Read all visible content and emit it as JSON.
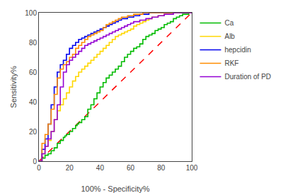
{
  "chart_data": {
    "type": "line",
    "xlabel": "100% - Specificity%",
    "ylabel": "Sensitivity%",
    "xlim": [
      0,
      100
    ],
    "ylim": [
      0,
      100
    ],
    "xticks": [
      0,
      20,
      40,
      60,
      80,
      100
    ],
    "yticks": [
      0,
      20,
      40,
      60,
      80,
      100
    ],
    "grid": false,
    "legend": "right",
    "series": [
      {
        "color": "#FF0000",
        "line_style": "dashed",
        "x": [
          0,
          100
        ],
        "values": [
          0,
          100
        ]
      },
      {
        "name": "Ca",
        "color": "#00BB00",
        "line_style": "steps",
        "x": [
          0,
          2,
          4,
          6,
          8,
          10,
          12,
          14,
          16,
          17,
          18,
          20,
          22,
          24,
          25,
          26,
          28,
          30,
          32,
          34,
          36,
          38,
          40,
          42,
          44,
          46,
          48,
          50,
          52,
          54,
          56,
          58,
          60,
          62,
          64,
          66,
          68,
          70,
          72,
          74,
          76,
          78,
          80,
          82,
          84,
          86,
          88,
          90,
          92,
          94,
          96,
          98,
          100
        ],
        "values": [
          0,
          2,
          4,
          5,
          7,
          9,
          12,
          14,
          16,
          17,
          18,
          20,
          22,
          24,
          25,
          26,
          28,
          30,
          35,
          38,
          42,
          46,
          50,
          53,
          56,
          58,
          60,
          62,
          64,
          67,
          70,
          72,
          74,
          76,
          77,
          79,
          82,
          84,
          85,
          86,
          88,
          89,
          90,
          92,
          93,
          94,
          96,
          97,
          98,
          99,
          99,
          100,
          100
        ]
      },
      {
        "name": "Alb",
        "color": "#FFD700",
        "line_style": "steps",
        "x": [
          0,
          2,
          4,
          6,
          8,
          10,
          12,
          14,
          16,
          18,
          20,
          22,
          24,
          26,
          28,
          30,
          32,
          34,
          36,
          38,
          40,
          42,
          44,
          46,
          48,
          50,
          52,
          54,
          56,
          58,
          60,
          62,
          64,
          66,
          68,
          70,
          72,
          74,
          76,
          78,
          80,
          82,
          84,
          86,
          88,
          90,
          92,
          94,
          96,
          98,
          100
        ],
        "values": [
          0,
          5,
          10,
          14,
          20,
          28,
          34,
          38,
          42,
          46,
          50,
          54,
          57,
          60,
          62,
          64,
          66,
          68,
          70,
          72,
          74,
          76,
          78,
          80,
          82,
          84,
          85,
          86,
          87,
          88,
          89,
          91,
          92,
          93,
          94,
          95,
          96,
          97,
          97,
          98,
          98,
          99,
          99,
          99,
          100,
          100,
          100,
          100,
          100,
          100,
          100
        ]
      },
      {
        "name": "hepcidin",
        "color": "#0000EE",
        "line_style": "steps",
        "x": [
          0,
          2,
          4,
          6,
          8,
          10,
          12,
          14,
          16,
          18,
          20,
          22,
          24,
          26,
          28,
          30,
          32,
          34,
          36,
          38,
          40,
          42,
          44,
          46,
          48,
          50,
          52,
          54,
          56,
          58,
          60,
          62,
          64,
          66,
          68,
          70,
          72,
          74,
          76,
          78,
          80,
          82,
          84,
          86,
          88,
          90,
          92,
          94,
          96,
          98,
          100
        ],
        "values": [
          0,
          8,
          15,
          25,
          38,
          50,
          60,
          65,
          68,
          72,
          76,
          78,
          80,
          82,
          83,
          84,
          85,
          86,
          87,
          88,
          89,
          90,
          91,
          92,
          93,
          94,
          95,
          96,
          96,
          97,
          97,
          98,
          98,
          99,
          99,
          99,
          100,
          100,
          100,
          100,
          100,
          100,
          100,
          100,
          100,
          100,
          100,
          100,
          100,
          100,
          100
        ]
      },
      {
        "name": "RKF",
        "color": "#FF8C00",
        "line_style": "steps",
        "x": [
          0,
          2,
          4,
          6,
          8,
          10,
          12,
          14,
          16,
          18,
          20,
          22,
          24,
          26,
          28,
          30,
          32,
          34,
          36,
          38,
          40,
          42,
          44,
          46,
          48,
          50,
          52,
          54,
          56,
          58,
          60,
          62,
          64,
          66,
          68,
          70,
          72,
          74,
          76,
          78,
          80,
          82,
          84,
          86,
          88,
          90,
          92,
          94,
          96,
          98,
          100
        ],
        "values": [
          0,
          12,
          18,
          25,
          35,
          45,
          56,
          62,
          65,
          67,
          70,
          72,
          76,
          78,
          80,
          82,
          84,
          85,
          86,
          87,
          88,
          90,
          92,
          93,
          94,
          95,
          96,
          97,
          97,
          98,
          98,
          99,
          99,
          99,
          100,
          100,
          100,
          100,
          100,
          100,
          100,
          100,
          100,
          100,
          100,
          100,
          100,
          100,
          100,
          100,
          100
        ]
      },
      {
        "name": "Duration of PD",
        "color": "#9400D3",
        "line_style": "steps",
        "x": [
          0,
          2,
          4,
          6,
          8,
          10,
          12,
          14,
          16,
          18,
          20,
          22,
          24,
          26,
          28,
          30,
          32,
          34,
          36,
          38,
          40,
          42,
          44,
          46,
          48,
          50,
          52,
          54,
          56,
          58,
          60,
          62,
          64,
          66,
          68,
          70,
          72,
          74,
          76,
          78,
          80,
          82,
          84,
          86,
          88,
          90,
          92,
          94,
          96,
          98,
          100
        ],
        "values": [
          0,
          5,
          10,
          15,
          20,
          28,
          38,
          50,
          60,
          65,
          68,
          70,
          72,
          74,
          76,
          78,
          79,
          80,
          81,
          82,
          83,
          84,
          85,
          86,
          87,
          88,
          89,
          90,
          91,
          92,
          93,
          94,
          94,
          95,
          95,
          96,
          96,
          97,
          97,
          98,
          98,
          99,
          99,
          99,
          100,
          100,
          100,
          100,
          100,
          100,
          100
        ]
      }
    ]
  }
}
